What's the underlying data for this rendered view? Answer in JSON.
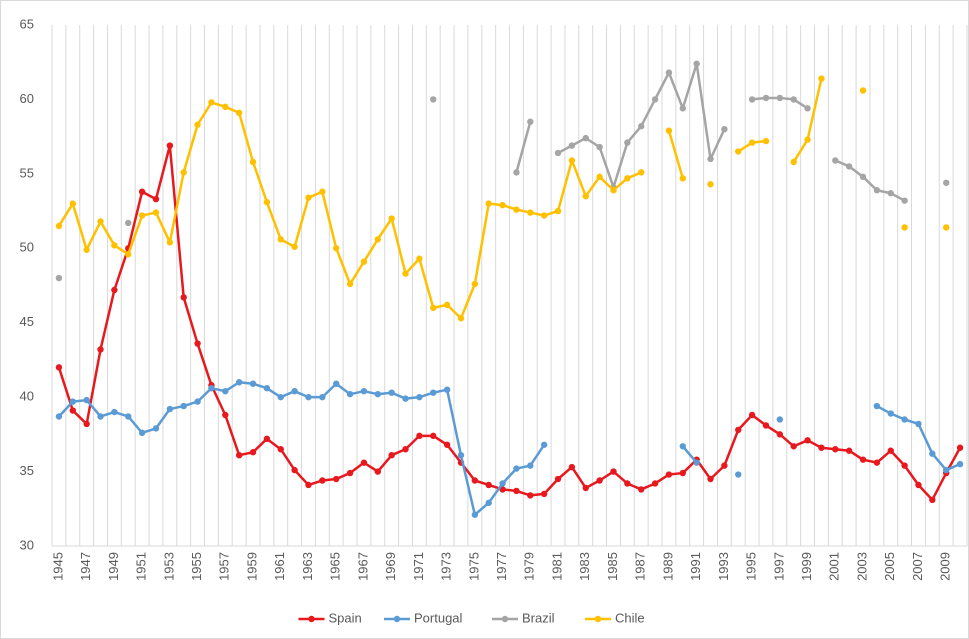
{
  "chart_data": {
    "type": "line",
    "categories": [
      "1945",
      null,
      "1947",
      null,
      "1949",
      null,
      "1951",
      null,
      "1953",
      null,
      "1955",
      null,
      "1957",
      null,
      "1959",
      null,
      "1961",
      null,
      "1963",
      null,
      "1965",
      null,
      "1967",
      null,
      "1969",
      null,
      "1971",
      null,
      "1973",
      null,
      "1975",
      null,
      "1977",
      null,
      "1979",
      null,
      "1981",
      null,
      "1983",
      null,
      "1985",
      null,
      "1987",
      null,
      "1989",
      null,
      "1991",
      null,
      "1993",
      null,
      "1995",
      null,
      "1997",
      null,
      "1999",
      null,
      "2001",
      null,
      "2003",
      null,
      "2005",
      null,
      "2007",
      null,
      "2009",
      null
    ],
    "series": [
      {
        "name": "Spain",
        "color": "#e8191e",
        "values": [
          42.0,
          39.1,
          38.2,
          43.2,
          47.2,
          50.0,
          53.8,
          53.3,
          56.9,
          46.7,
          43.6,
          40.8,
          38.8,
          36.1,
          36.3,
          37.2,
          36.5,
          35.1,
          34.1,
          34.4,
          34.5,
          34.9,
          35.6,
          35.0,
          36.1,
          36.5,
          37.4,
          37.4,
          36.8,
          35.6,
          34.4,
          34.1,
          33.8,
          33.7,
          33.4,
          33.5,
          34.5,
          35.3,
          33.9,
          34.4,
          35.0,
          34.2,
          33.8,
          34.2,
          34.8,
          34.9,
          35.8,
          34.5,
          35.4,
          37.8,
          38.8,
          38.1,
          37.5,
          36.7,
          37.1,
          36.6,
          36.5,
          36.4,
          35.8,
          35.6,
          36.4,
          35.4,
          34.1,
          33.1,
          34.9,
          36.6
        ]
      },
      {
        "name": "Portugal",
        "color": "#5b9bd5",
        "values": [
          38.7,
          39.7,
          39.8,
          38.7,
          39.0,
          38.7,
          37.6,
          37.9,
          39.2,
          39.4,
          39.7,
          40.6,
          40.4,
          41.0,
          40.9,
          40.6,
          40.0,
          40.4,
          40.0,
          40.0,
          40.9,
          40.2,
          40.4,
          40.2,
          40.3,
          39.9,
          40.0,
          40.3,
          40.5,
          36.1,
          32.1,
          32.9,
          34.2,
          35.2,
          35.4,
          36.8,
          null,
          null,
          null,
          null,
          null,
          null,
          null,
          null,
          null,
          36.7,
          35.6,
          null,
          null,
          34.8,
          null,
          null,
          38.5,
          null,
          null,
          null,
          null,
          null,
          null,
          39.4,
          38.9,
          38.5,
          38.2,
          36.2,
          35.1,
          35.5
        ]
      },
      {
        "name": "Brazil",
        "color": "#a5a5a5",
        "values": [
          48.0,
          null,
          null,
          null,
          null,
          51.7,
          null,
          null,
          null,
          null,
          null,
          null,
          null,
          null,
          null,
          null,
          null,
          null,
          null,
          null,
          null,
          null,
          null,
          null,
          null,
          null,
          null,
          60.0,
          null,
          null,
          null,
          null,
          null,
          55.1,
          58.5,
          null,
          56.4,
          56.9,
          57.4,
          56.8,
          54.1,
          57.1,
          58.2,
          60.0,
          61.8,
          59.4,
          62.4,
          56.0,
          58.0,
          null,
          60.0,
          60.1,
          60.1,
          60.0,
          59.4,
          null,
          55.9,
          55.5,
          54.8,
          53.9,
          53.7,
          53.2,
          null,
          null,
          54.4,
          null
        ]
      },
      {
        "name": "Chile",
        "color": "#ffc000",
        "values": [
          51.5,
          53.0,
          49.9,
          51.8,
          50.2,
          49.6,
          52.2,
          52.4,
          50.4,
          55.1,
          58.3,
          59.8,
          59.5,
          59.1,
          55.8,
          53.1,
          50.6,
          50.1,
          53.4,
          53.8,
          50.0,
          47.6,
          49.1,
          50.6,
          52.0,
          48.3,
          49.3,
          46.0,
          46.2,
          45.3,
          47.6,
          53.0,
          52.9,
          52.6,
          52.4,
          52.2,
          52.5,
          55.9,
          53.5,
          54.8,
          53.9,
          54.7,
          55.1,
          null,
          57.9,
          54.7,
          null,
          54.3,
          null,
          56.5,
          57.1,
          57.2,
          null,
          55.8,
          57.3,
          61.4,
          null,
          null,
          60.6,
          null,
          null,
          51.4,
          null,
          null,
          51.4,
          null
        ]
      }
    ],
    "ylim": [
      30,
      65
    ],
    "yticks": [
      30,
      35,
      40,
      45,
      50,
      55,
      60,
      65
    ],
    "grid": "vertical",
    "legend": "bottom"
  }
}
